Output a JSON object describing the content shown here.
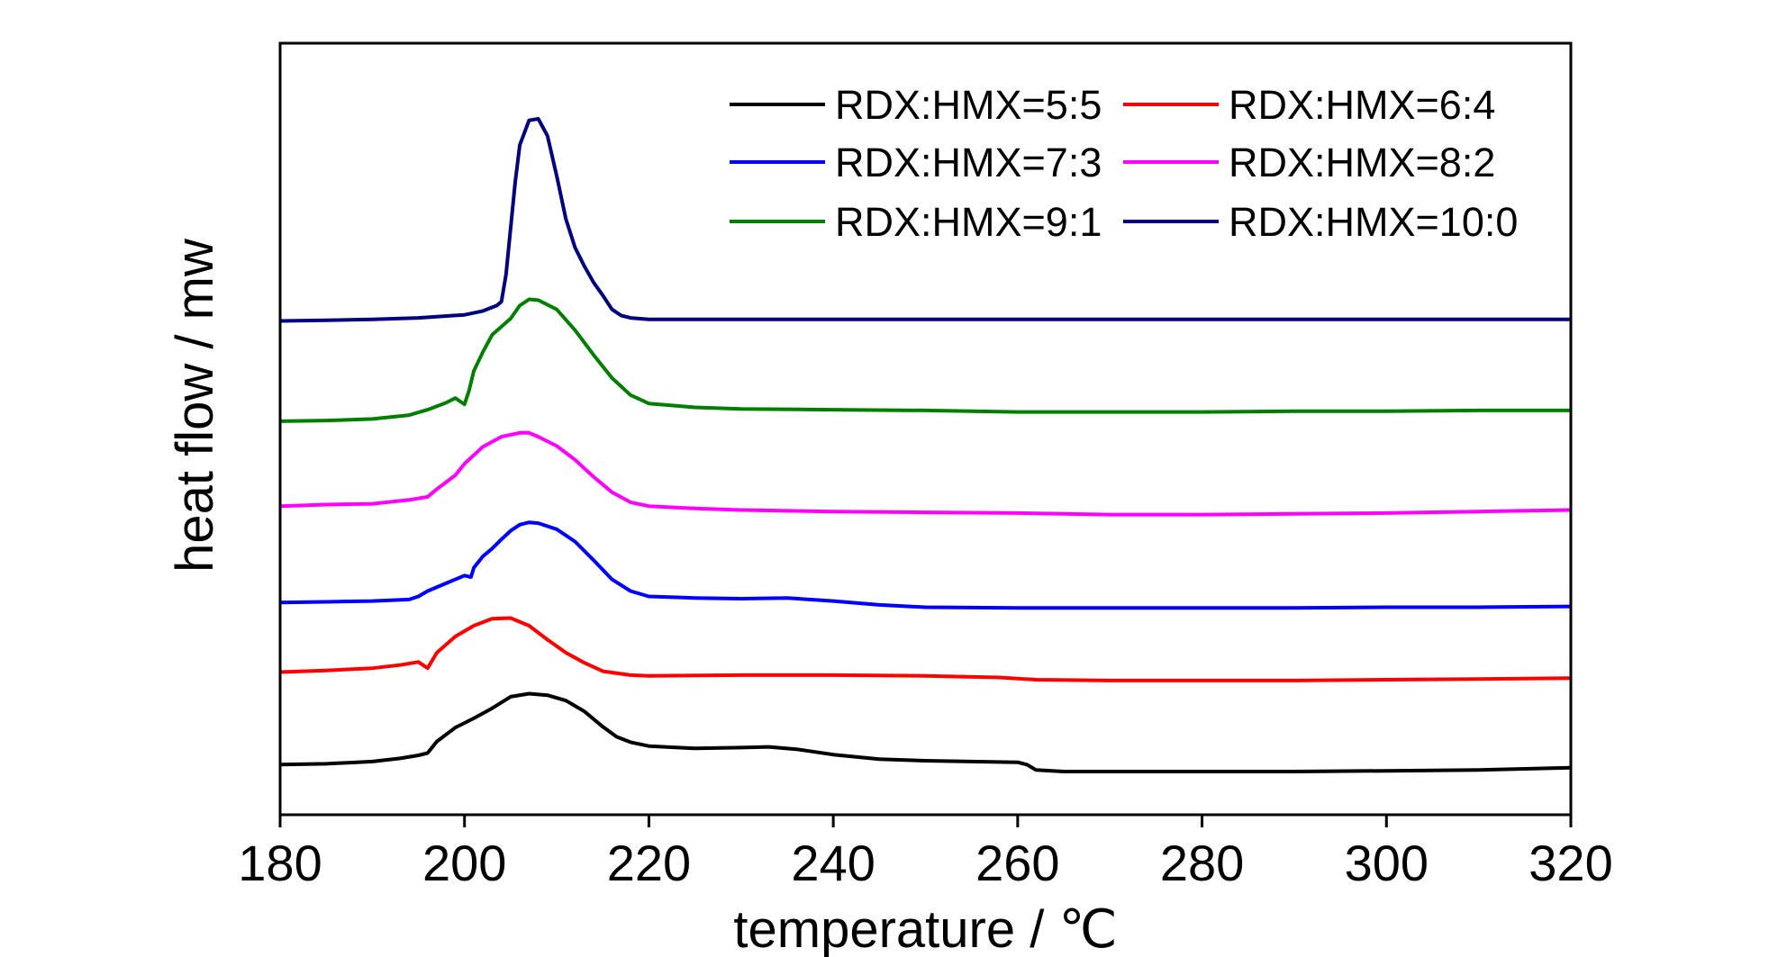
{
  "chart_data": {
    "type": "line",
    "title": "",
    "xlabel": "temperature / ℃",
    "ylabel": "heat flow / mw",
    "xlim": [
      180,
      320
    ],
    "ylim": [
      0,
      1
    ],
    "xticks": [
      "180",
      "200",
      "220",
      "240",
      "260",
      "280",
      "300",
      "320"
    ],
    "yticks_shown": false,
    "grid": false,
    "legend_position": "top-right",
    "series": [
      {
        "name": "RDX:HMX=5:5",
        "color": "#000000",
        "points": [
          [
            180,
            0.065
          ],
          [
            185,
            0.066
          ],
          [
            190,
            0.069
          ],
          [
            193,
            0.073
          ],
          [
            195,
            0.077
          ],
          [
            196,
            0.08
          ],
          [
            197,
            0.095
          ],
          [
            199,
            0.113
          ],
          [
            201,
            0.125
          ],
          [
            203,
            0.138
          ],
          [
            205,
            0.153
          ],
          [
            207,
            0.157
          ],
          [
            209,
            0.155
          ],
          [
            211,
            0.148
          ],
          [
            213,
            0.134
          ],
          [
            215,
            0.114
          ],
          [
            216.5,
            0.101
          ],
          [
            218,
            0.094
          ],
          [
            220,
            0.089
          ],
          [
            225,
            0.086
          ],
          [
            230,
            0.087
          ],
          [
            233,
            0.088
          ],
          [
            236,
            0.085
          ],
          [
            240,
            0.078
          ],
          [
            245,
            0.072
          ],
          [
            250,
            0.07
          ],
          [
            255,
            0.069
          ],
          [
            260,
            0.068
          ],
          [
            261,
            0.065
          ],
          [
            262,
            0.058
          ],
          [
            265,
            0.056
          ],
          [
            270,
            0.056
          ],
          [
            280,
            0.056
          ],
          [
            290,
            0.056
          ],
          [
            300,
            0.057
          ],
          [
            310,
            0.058
          ],
          [
            320,
            0.061
          ]
        ]
      },
      {
        "name": "RDX:HMX=6:4",
        "color": "#ff0000",
        "points": [
          [
            180,
            0.185
          ],
          [
            185,
            0.187
          ],
          [
            190,
            0.19
          ],
          [
            193,
            0.194
          ],
          [
            195,
            0.198
          ],
          [
            196,
            0.19
          ],
          [
            197,
            0.21
          ],
          [
            199,
            0.231
          ],
          [
            201,
            0.245
          ],
          [
            203,
            0.254
          ],
          [
            205,
            0.255
          ],
          [
            207,
            0.245
          ],
          [
            209,
            0.227
          ],
          [
            211,
            0.21
          ],
          [
            213,
            0.197
          ],
          [
            215,
            0.186
          ],
          [
            218,
            0.181
          ],
          [
            220,
            0.18
          ],
          [
            230,
            0.181
          ],
          [
            240,
            0.181
          ],
          [
            250,
            0.18
          ],
          [
            258,
            0.178
          ],
          [
            262,
            0.175
          ],
          [
            270,
            0.174
          ],
          [
            280,
            0.174
          ],
          [
            290,
            0.174
          ],
          [
            300,
            0.175
          ],
          [
            310,
            0.176
          ],
          [
            320,
            0.177
          ]
        ]
      },
      {
        "name": "RDX:HMX=7:3",
        "color": "#0000ff",
        "points": [
          [
            180,
            0.275
          ],
          [
            185,
            0.276
          ],
          [
            190,
            0.277
          ],
          [
            194,
            0.279
          ],
          [
            195,
            0.283
          ],
          [
            196,
            0.29
          ],
          [
            198,
            0.3
          ],
          [
            200,
            0.31
          ],
          [
            200.7,
            0.308
          ],
          [
            201,
            0.32
          ],
          [
            202,
            0.335
          ],
          [
            203,
            0.345
          ],
          [
            204,
            0.357
          ],
          [
            205,
            0.368
          ],
          [
            206,
            0.376
          ],
          [
            207,
            0.379
          ],
          [
            208,
            0.378
          ],
          [
            210,
            0.37
          ],
          [
            212,
            0.354
          ],
          [
            214,
            0.33
          ],
          [
            216,
            0.305
          ],
          [
            218,
            0.29
          ],
          [
            220,
            0.283
          ],
          [
            225,
            0.281
          ],
          [
            230,
            0.28
          ],
          [
            235,
            0.281
          ],
          [
            240,
            0.277
          ],
          [
            245,
            0.272
          ],
          [
            250,
            0.269
          ],
          [
            260,
            0.268
          ],
          [
            270,
            0.268
          ],
          [
            280,
            0.268
          ],
          [
            290,
            0.268
          ],
          [
            300,
            0.269
          ],
          [
            310,
            0.269
          ],
          [
            320,
            0.27
          ]
        ]
      },
      {
        "name": "RDX:HMX=8:2",
        "color": "#ff00ff",
        "points": [
          [
            180,
            0.4
          ],
          [
            185,
            0.402
          ],
          [
            190,
            0.403
          ],
          [
            194,
            0.408
          ],
          [
            196,
            0.412
          ],
          [
            197,
            0.422
          ],
          [
            199,
            0.44
          ],
          [
            200,
            0.455
          ],
          [
            202,
            0.477
          ],
          [
            204,
            0.49
          ],
          [
            206,
            0.495
          ],
          [
            207,
            0.495
          ],
          [
            208,
            0.49
          ],
          [
            210,
            0.478
          ],
          [
            212,
            0.46
          ],
          [
            214,
            0.438
          ],
          [
            216,
            0.418
          ],
          [
            218,
            0.405
          ],
          [
            220,
            0.4
          ],
          [
            225,
            0.397
          ],
          [
            230,
            0.395
          ],
          [
            240,
            0.393
          ],
          [
            250,
            0.392
          ],
          [
            260,
            0.391
          ],
          [
            270,
            0.389
          ],
          [
            280,
            0.389
          ],
          [
            290,
            0.39
          ],
          [
            300,
            0.391
          ],
          [
            310,
            0.393
          ],
          [
            320,
            0.395
          ]
        ]
      },
      {
        "name": "RDX:HMX=9:1",
        "color": "#007f00",
        "points": [
          [
            180,
            0.51
          ],
          [
            185,
            0.511
          ],
          [
            190,
            0.513
          ],
          [
            194,
            0.518
          ],
          [
            196,
            0.525
          ],
          [
            198,
            0.534
          ],
          [
            199,
            0.54
          ],
          [
            200,
            0.532
          ],
          [
            200.5,
            0.55
          ],
          [
            201,
            0.575
          ],
          [
            202,
            0.6
          ],
          [
            203,
            0.622
          ],
          [
            205,
            0.643
          ],
          [
            206,
            0.66
          ],
          [
            207,
            0.668
          ],
          [
            208,
            0.667
          ],
          [
            210,
            0.655
          ],
          [
            212,
            0.628
          ],
          [
            214,
            0.596
          ],
          [
            216,
            0.566
          ],
          [
            218,
            0.544
          ],
          [
            220,
            0.533
          ],
          [
            225,
            0.528
          ],
          [
            230,
            0.526
          ],
          [
            240,
            0.525
          ],
          [
            250,
            0.524
          ],
          [
            260,
            0.522
          ],
          [
            270,
            0.522
          ],
          [
            280,
            0.522
          ],
          [
            290,
            0.523
          ],
          [
            300,
            0.523
          ],
          [
            310,
            0.524
          ],
          [
            320,
            0.524
          ]
        ]
      },
      {
        "name": "RDX:HMX=10:0",
        "color": "#000080",
        "points": [
          [
            180,
            0.64
          ],
          [
            185,
            0.641
          ],
          [
            190,
            0.642
          ],
          [
            195,
            0.644
          ],
          [
            200,
            0.648
          ],
          [
            202,
            0.653
          ],
          [
            203.5,
            0.66
          ],
          [
            204,
            0.665
          ],
          [
            204.5,
            0.7
          ],
          [
            205,
            0.76
          ],
          [
            205.5,
            0.82
          ],
          [
            206,
            0.868
          ],
          [
            207,
            0.9
          ],
          [
            208,
            0.902
          ],
          [
            209,
            0.88
          ],
          [
            210,
            0.828
          ],
          [
            211,
            0.772
          ],
          [
            212,
            0.735
          ],
          [
            213,
            0.711
          ],
          [
            214,
            0.69
          ],
          [
            215,
            0.673
          ],
          [
            216,
            0.655
          ],
          [
            217,
            0.647
          ],
          [
            218,
            0.644
          ],
          [
            220,
            0.642
          ],
          [
            230,
            0.642
          ],
          [
            240,
            0.642
          ],
          [
            250,
            0.642
          ],
          [
            260,
            0.642
          ],
          [
            270,
            0.642
          ],
          [
            280,
            0.642
          ],
          [
            290,
            0.642
          ],
          [
            300,
            0.642
          ],
          [
            310,
            0.642
          ],
          [
            320,
            0.642
          ]
        ]
      }
    ]
  }
}
